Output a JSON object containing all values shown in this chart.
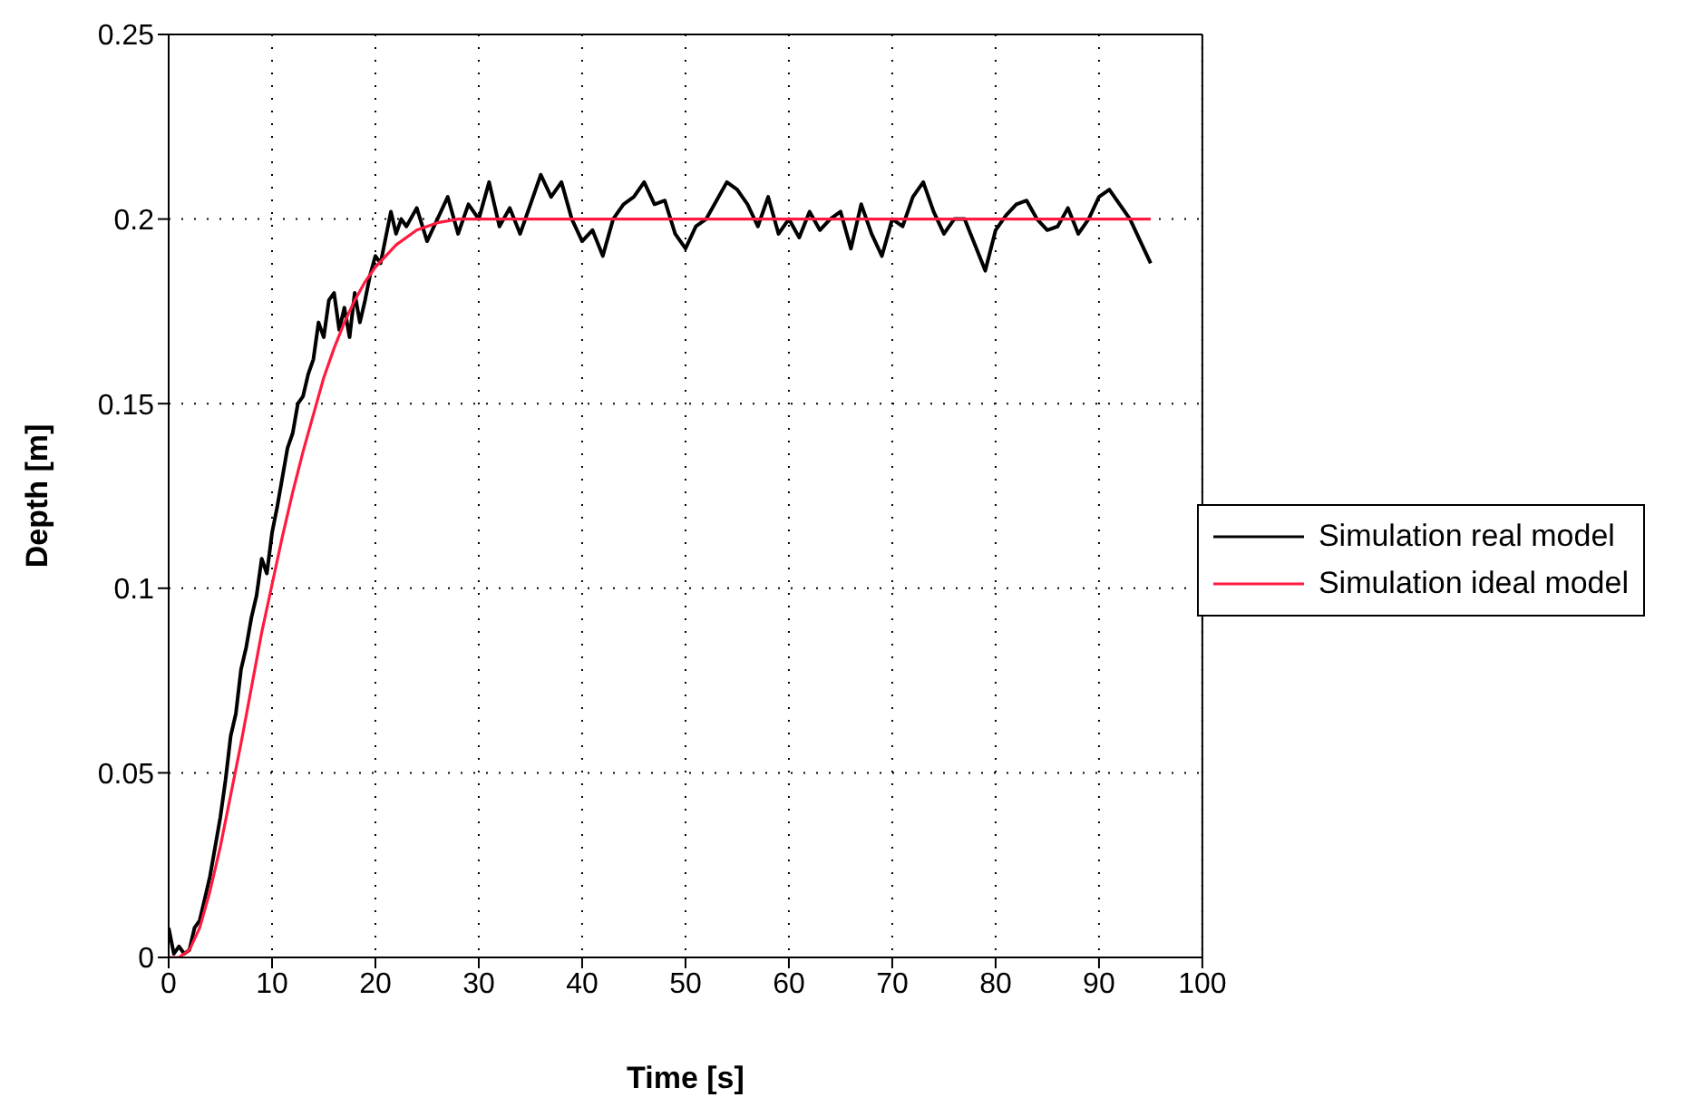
{
  "chart_data": {
    "type": "line",
    "xlabel": "Time [s]",
    "ylabel": "Depth [m]",
    "xlim": [
      0,
      100
    ],
    "ylim": [
      0,
      0.25
    ],
    "xticks": [
      0,
      10,
      20,
      30,
      40,
      50,
      60,
      70,
      80,
      90,
      100
    ],
    "yticks": [
      0,
      0.05,
      0.1,
      0.15,
      0.2,
      0.25
    ],
    "grid": true,
    "legend": "right",
    "line_style": "solid",
    "marker": "none",
    "series": [
      {
        "name": "Simulation real model",
        "color": "#000000",
        "x": [
          0,
          0.5,
          1,
          1.5,
          2,
          2.5,
          3,
          3.5,
          4,
          4.5,
          5,
          5.5,
          6,
          6.5,
          7,
          7.5,
          8,
          8.5,
          9,
          9.5,
          10,
          10.5,
          11,
          11.5,
          12,
          12.5,
          13,
          13.5,
          14,
          14.5,
          15,
          15.5,
          16,
          16.5,
          17,
          17.5,
          18,
          18.5,
          19,
          19.5,
          20,
          20.5,
          21,
          21.5,
          22,
          22.5,
          23,
          24,
          25,
          26,
          27,
          28,
          29,
          30,
          31,
          32,
          33,
          34,
          35,
          36,
          37,
          38,
          39,
          40,
          41,
          42,
          43,
          44,
          45,
          46,
          47,
          48,
          49,
          50,
          51,
          52,
          53,
          54,
          55,
          56,
          57,
          58,
          59,
          60,
          61,
          62,
          63,
          64,
          65,
          66,
          67,
          68,
          69,
          70,
          71,
          72,
          73,
          74,
          75,
          76,
          77,
          78,
          79,
          80,
          81,
          82,
          83,
          84,
          85,
          86,
          87,
          88,
          89,
          90,
          91,
          92,
          93,
          94,
          95
        ],
        "values": [
          0.008,
          0.001,
          0.003,
          0.001,
          0.002,
          0.008,
          0.01,
          0.016,
          0.022,
          0.03,
          0.038,
          0.048,
          0.06,
          0.066,
          0.078,
          0.084,
          0.092,
          0.098,
          0.108,
          0.104,
          0.115,
          0.122,
          0.13,
          0.138,
          0.142,
          0.15,
          0.152,
          0.158,
          0.162,
          0.172,
          0.168,
          0.178,
          0.18,
          0.17,
          0.176,
          0.168,
          0.18,
          0.172,
          0.178,
          0.185,
          0.19,
          0.188,
          0.195,
          0.202,
          0.196,
          0.2,
          0.198,
          0.203,
          0.194,
          0.2,
          0.206,
          0.196,
          0.204,
          0.2,
          0.21,
          0.198,
          0.203,
          0.196,
          0.204,
          0.212,
          0.206,
          0.21,
          0.2,
          0.194,
          0.197,
          0.19,
          0.2,
          0.204,
          0.206,
          0.21,
          0.204,
          0.205,
          0.196,
          0.192,
          0.198,
          0.2,
          0.205,
          0.21,
          0.208,
          0.204,
          0.198,
          0.206,
          0.196,
          0.2,
          0.195,
          0.202,
          0.197,
          0.2,
          0.202,
          0.192,
          0.204,
          0.196,
          0.19,
          0.2,
          0.198,
          0.206,
          0.21,
          0.202,
          0.196,
          0.2,
          0.2,
          0.193,
          0.186,
          0.197,
          0.201,
          0.204,
          0.205,
          0.2,
          0.197,
          0.198,
          0.203,
          0.196,
          0.2,
          0.206,
          0.208,
          0.204,
          0.2,
          0.194,
          0.188
        ]
      },
      {
        "name": "Simulation ideal model",
        "color": "#ff1a40",
        "x": [
          0,
          1,
          2,
          3,
          4,
          5,
          6,
          7,
          8,
          9,
          10,
          11,
          12,
          13,
          14,
          15,
          16,
          17,
          18,
          19,
          20,
          22,
          24,
          26,
          28,
          30,
          40,
          50,
          60,
          70,
          80,
          90,
          95
        ],
        "values": [
          0,
          0,
          0.002,
          0.008,
          0.018,
          0.03,
          0.044,
          0.058,
          0.073,
          0.088,
          0.101,
          0.114,
          0.126,
          0.137,
          0.147,
          0.157,
          0.165,
          0.172,
          0.178,
          0.183,
          0.187,
          0.193,
          0.197,
          0.199,
          0.2,
          0.2,
          0.2,
          0.2,
          0.2,
          0.2,
          0.2,
          0.2,
          0.2
        ]
      }
    ]
  }
}
